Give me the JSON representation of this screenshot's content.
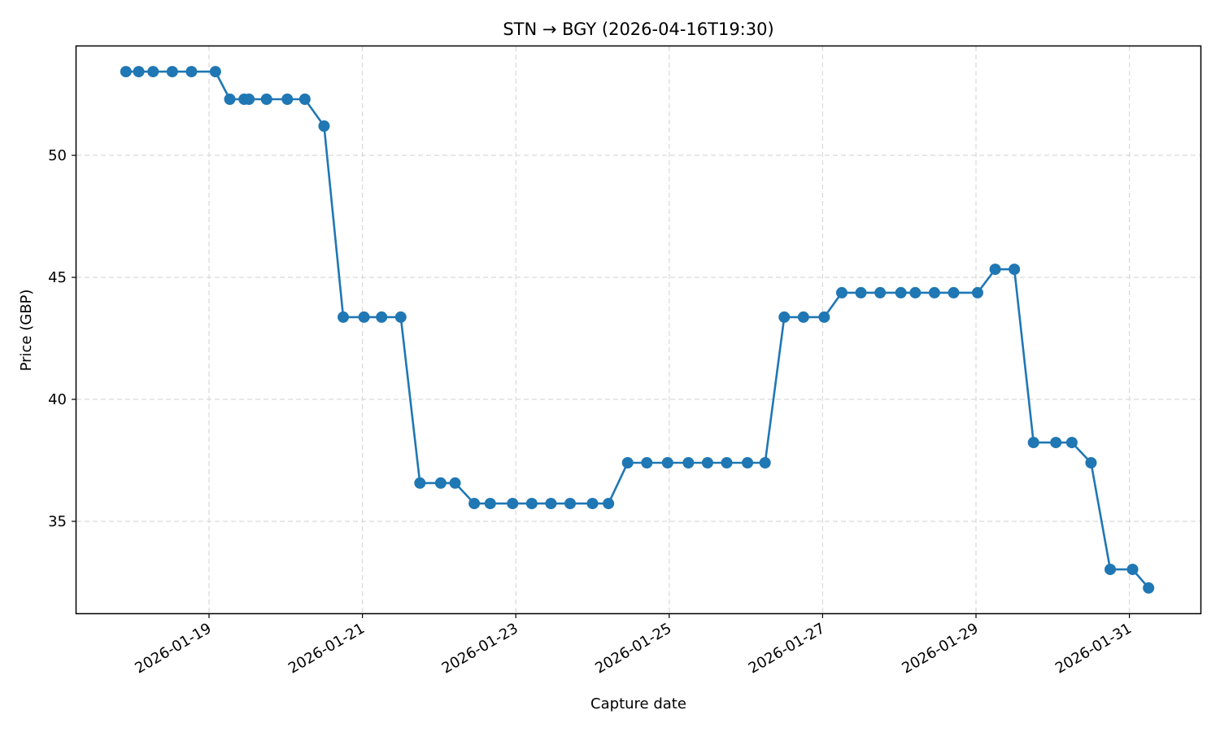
{
  "chart_data": {
    "type": "line",
    "title": "STN → BGY (2026-04-16T19:30)",
    "xlabel": "Capture date",
    "ylabel": "Price (GBP)",
    "ylim": [
      31.1,
      54.5
    ],
    "yticks": [
      35,
      40,
      45,
      50
    ],
    "xticks": [
      "2026-01-19",
      "2026-01-21",
      "2026-01-23",
      "2026-01-25",
      "2026-01-27",
      "2026-01-29",
      "2026-01-31"
    ],
    "grid": true,
    "legend": null,
    "color": "#1f77b4",
    "series": [
      {
        "name": "Price",
        "points": [
          {
            "x": "2026-01-17T22:00",
            "y": 53.43
          },
          {
            "x": "2026-01-18T02:00",
            "y": 53.43
          },
          {
            "x": "2026-01-18T06:30",
            "y": 53.43
          },
          {
            "x": "2026-01-18T12:30",
            "y": 53.43
          },
          {
            "x": "2026-01-18T18:30",
            "y": 53.43
          },
          {
            "x": "2026-01-19T02:00",
            "y": 53.43
          },
          {
            "x": "2026-01-19T06:30",
            "y": 52.3
          },
          {
            "x": "2026-01-19T11:00",
            "y": 52.3
          },
          {
            "x": "2026-01-19T12:30",
            "y": 52.3
          },
          {
            "x": "2026-01-19T18:00",
            "y": 52.3
          },
          {
            "x": "2026-01-20T00:30",
            "y": 52.3
          },
          {
            "x": "2026-01-20T06:00",
            "y": 52.3
          },
          {
            "x": "2026-01-20T12:00",
            "y": 51.2
          },
          {
            "x": "2026-01-20T18:00",
            "y": 43.37
          },
          {
            "x": "2026-01-21T00:30",
            "y": 43.37
          },
          {
            "x": "2026-01-21T06:00",
            "y": 43.37
          },
          {
            "x": "2026-01-21T12:00",
            "y": 43.37
          },
          {
            "x": "2026-01-21T18:00",
            "y": 36.57
          },
          {
            "x": "2026-01-22T00:30",
            "y": 36.57
          },
          {
            "x": "2026-01-22T05:00",
            "y": 36.57
          },
          {
            "x": "2026-01-22T11:00",
            "y": 35.73
          },
          {
            "x": "2026-01-22T16:00",
            "y": 35.73
          },
          {
            "x": "2026-01-22T23:00",
            "y": 35.73
          },
          {
            "x": "2026-01-23T05:00",
            "y": 35.73
          },
          {
            "x": "2026-01-23T11:00",
            "y": 35.73
          },
          {
            "x": "2026-01-23T17:00",
            "y": 35.73
          },
          {
            "x": "2026-01-24T00:00",
            "y": 35.73
          },
          {
            "x": "2026-01-24T05:00",
            "y": 35.73
          },
          {
            "x": "2026-01-24T11:00",
            "y": 37.4
          },
          {
            "x": "2026-01-24T17:00",
            "y": 37.4
          },
          {
            "x": "2026-01-24T23:30",
            "y": 37.4
          },
          {
            "x": "2026-01-25T06:00",
            "y": 37.4
          },
          {
            "x": "2026-01-25T12:00",
            "y": 37.4
          },
          {
            "x": "2026-01-25T18:00",
            "y": 37.4
          },
          {
            "x": "2026-01-26T00:30",
            "y": 37.4
          },
          {
            "x": "2026-01-26T06:00",
            "y": 37.4
          },
          {
            "x": "2026-01-26T12:00",
            "y": 43.37
          },
          {
            "x": "2026-01-26T18:00",
            "y": 43.37
          },
          {
            "x": "2026-01-27T00:30",
            "y": 43.37
          },
          {
            "x": "2026-01-27T06:00",
            "y": 44.37
          },
          {
            "x": "2026-01-27T12:00",
            "y": 44.37
          },
          {
            "x": "2026-01-27T18:00",
            "y": 44.37
          },
          {
            "x": "2026-01-28T00:30",
            "y": 44.37
          },
          {
            "x": "2026-01-28T05:00",
            "y": 44.37
          },
          {
            "x": "2026-01-28T11:00",
            "y": 44.37
          },
          {
            "x": "2026-01-28T17:00",
            "y": 44.37
          },
          {
            "x": "2026-01-29T00:30",
            "y": 44.37
          },
          {
            "x": "2026-01-29T06:00",
            "y": 45.33
          },
          {
            "x": "2026-01-29T12:00",
            "y": 45.33
          },
          {
            "x": "2026-01-29T18:00",
            "y": 38.23
          },
          {
            "x": "2026-01-30T01:00",
            "y": 38.23
          },
          {
            "x": "2026-01-30T06:00",
            "y": 38.23
          },
          {
            "x": "2026-01-30T12:00",
            "y": 37.4
          },
          {
            "x": "2026-01-30T18:00",
            "y": 33.03
          },
          {
            "x": "2026-01-31T01:00",
            "y": 33.03
          },
          {
            "x": "2026-01-31T06:00",
            "y": 32.27
          }
        ]
      }
    ]
  }
}
